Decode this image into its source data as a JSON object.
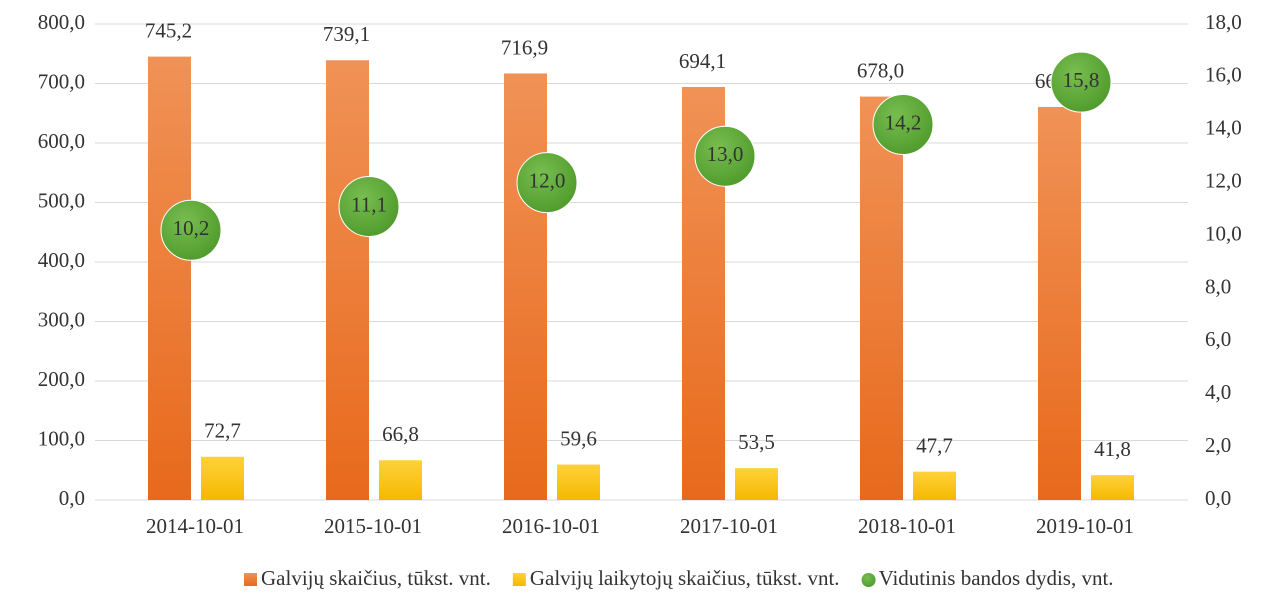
{
  "chart_data": {
    "type": "bar",
    "categories": [
      "2014-10-01",
      "2015-10-01",
      "2016-10-01",
      "2017-10-01",
      "2018-10-01",
      "2019-10-01"
    ],
    "series": [
      {
        "name": "Galvijų skaičius, tūkst. vnt.",
        "color": "#ed7d31",
        "values": [
          745.2,
          739.1,
          716.9,
          694.1,
          678.0,
          660.6
        ],
        "value_labels": [
          "745,2",
          "739,1",
          "716,9",
          "694,1",
          "678,0",
          "660,6"
        ]
      },
      {
        "name": "Galvijų laikytojų skaičius, tūkst. vnt.",
        "color": "#ffc000",
        "values": [
          72.7,
          66.8,
          59.6,
          53.5,
          47.7,
          41.8
        ],
        "value_labels": [
          "72,7",
          "66,8",
          "59,6",
          "53,5",
          "47,7",
          "41,8"
        ]
      },
      {
        "name": "Vidutinis bandos dydis, vnt.",
        "color": "#5b9e35",
        "type": "scatter",
        "axis": "y2",
        "values": [
          10.2,
          11.1,
          12.0,
          13.0,
          14.2,
          15.8
        ],
        "value_labels": [
          "10,2",
          "11,1",
          "12,0",
          "13,0",
          "14,2",
          "15,8"
        ]
      }
    ],
    "ylim": [
      0,
      800
    ],
    "yticks": [
      {
        "value": 0,
        "label": "0,0"
      },
      {
        "value": 100,
        "label": "100,0"
      },
      {
        "value": 200,
        "label": "200,0"
      },
      {
        "value": 300,
        "label": "300,0"
      },
      {
        "value": 400,
        "label": "400,0"
      },
      {
        "value": 500,
        "label": "500,0"
      },
      {
        "value": 600,
        "label": "600,0"
      },
      {
        "value": 700,
        "label": "700,0"
      },
      {
        "value": 800,
        "label": "800,0"
      }
    ],
    "y2lim": [
      0,
      18
    ],
    "y2ticks": [
      {
        "value": 0,
        "label": "0,0"
      },
      {
        "value": 2,
        "label": "2,0"
      },
      {
        "value": 4,
        "label": "4,0"
      },
      {
        "value": 6,
        "label": "6,0"
      },
      {
        "value": 8,
        "label": "8,0"
      },
      {
        "value": 10,
        "label": "10,0"
      },
      {
        "value": 12,
        "label": "12,0"
      },
      {
        "value": 14,
        "label": "14,0"
      },
      {
        "value": 16,
        "label": "16,0"
      },
      {
        "value": 18,
        "label": "18,0"
      }
    ],
    "grid": true,
    "legend": "bottom"
  }
}
